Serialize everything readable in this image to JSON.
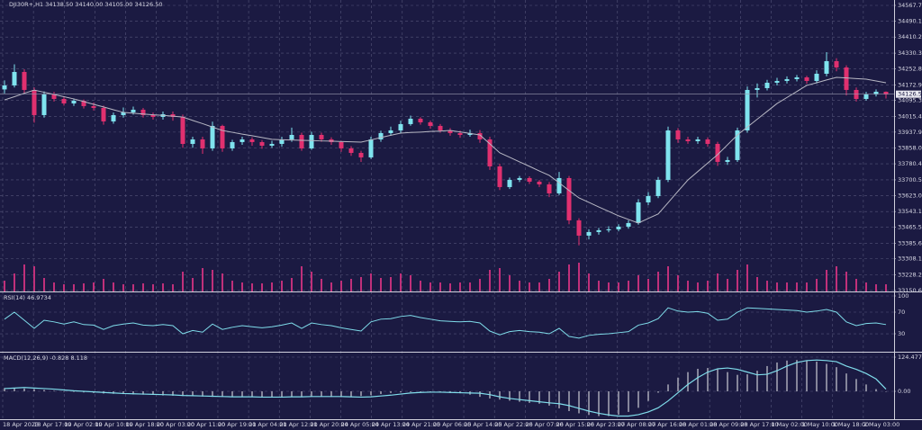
{
  "chart_data": [
    {
      "type": "candlestick",
      "title": "DJI30R+,H1  34138.50 34140.00 34105.00 34126.50",
      "up_color": "#7fe3ee",
      "down_color": "#e0306f",
      "ma_color": "#b8b8c4",
      "volume_color": "#c0307a",
      "grid": true,
      "ylim": [
        33146,
        34594.5
      ],
      "yticks": [
        {
          "value": 34567.7,
          "label": "34567.70"
        },
        34490.15,
        34410.25,
        {
          "value": 34330.3,
          "label": "34330.30"
        },
        {
          "value": 34252.8,
          "label": "34252.80"
        },
        {
          "value": 34172.9,
          "label": "34172.90"
        },
        34095.35,
        34015.45,
        {
          "value": 33937.9,
          "label": "33937.90"
        },
        {
          "value": 33858,
          "label": "33858.00"
        },
        33780.45,
        33700.55,
        {
          "value": 33623,
          "label": "33623.00"
        },
        {
          "value": 33543.1,
          "label": "33543.10"
        },
        33465.55,
        33385.65,
        {
          "value": 33308.1,
          "label": "33308.10"
        },
        {
          "value": 33228.2,
          "label": "33228.20"
        },
        33150.65
      ],
      "last_price": 34126.53,
      "open": [
        34150.0,
        34169.9,
        34236.9,
        34147.5,
        34022.4,
        34125.2,
        34102.8,
        34080.5,
        34093.9,
        34067.1,
        34058.1,
        33991.1,
        34022.4,
        34035.8,
        34049.2,
        34022.4,
        34013.4,
        34026.8,
        34013.4,
        33879.3,
        33901.7,
        33857.0,
        33968.7,
        33857.0,
        33888.3,
        33901.7,
        33888.3,
        33870.4,
        33879.3,
        33901.7,
        33924.0,
        33857.0,
        33924.0,
        33901.7,
        33888.3,
        33857.0,
        33834.6,
        33812.3,
        33901.7,
        33933.0,
        33946.4,
        33977.7,
        34004.5,
        33986.6,
        33968.7,
        33946.4,
        33933.0,
        33924.0,
        33933.0,
        33901.7,
        33767.6,
        33664.8,
        33700.5,
        33709.5,
        33691.6,
        33678.2,
        33633.5,
        33709.5,
        33499.4,
        33423.4,
        33441.3,
        33450.2,
        33454.7,
        33468.1,
        33486.0,
        33588.8,
        33620.1,
        33700.5,
        33946.4,
        33901.7,
        33892.7,
        33901.7,
        33879.3,
        33789.9,
        33798.9,
        33946.4,
        34147.5,
        34156.5,
        34183.3,
        34192.2,
        34201.2,
        34210.1,
        34192.2,
        34228.0,
        34290.6,
        34259.3,
        34147.5,
        34102.8,
        34125.2,
        34138.5
      ],
      "high": [
        34195,
        34275,
        34250,
        34160,
        34140,
        34138,
        34115,
        34105,
        34100,
        34085,
        34070,
        34035,
        34060,
        34065,
        34058,
        34035,
        34040,
        34040,
        34025,
        33915,
        33915,
        33990,
        33975,
        33900,
        33915,
        33912,
        33898,
        33895,
        33915,
        33960,
        33935,
        33940,
        33935,
        33912,
        33895,
        33868,
        33845,
        33915,
        33945,
        33965,
        33995,
        34020,
        34012,
        33995,
        33978,
        33958,
        33945,
        33950,
        33948,
        33915,
        33780,
        33712,
        33720,
        33718,
        33700,
        33690,
        33740,
        33720,
        33510,
        33455,
        33462,
        33470,
        33480,
        33500,
        33605,
        33640,
        33715,
        33965,
        33958,
        33915,
        33915,
        33912,
        33890,
        33815,
        33960,
        34165,
        34180,
        34198,
        34208,
        34215,
        34222,
        34218,
        34245,
        34335,
        34305,
        34270,
        34160,
        34138,
        34150,
        34140
      ],
      "low": [
        34130,
        34160,
        34130,
        33985,
        34010,
        34090,
        34070,
        34068,
        34055,
        34045,
        33975,
        33980,
        34010,
        34025,
        34010,
        34000,
        34000,
        33995,
        33860,
        33860,
        33830,
        33845,
        33840,
        33845,
        33875,
        33870,
        33855,
        33860,
        33865,
        33890,
        33845,
        33850,
        33890,
        33875,
        33840,
        33820,
        33790,
        33805,
        33890,
        33920,
        33935,
        33970,
        33975,
        33955,
        33935,
        33920,
        33910,
        33915,
        33885,
        33750,
        33650,
        33655,
        33690,
        33680,
        33665,
        33615,
        33625,
        33480,
        33375,
        33405,
        33428,
        33440,
        33445,
        33458,
        33478,
        33575,
        33610,
        33690,
        33885,
        33880,
        33880,
        33865,
        33770,
        33775,
        33790,
        33935,
        34110,
        34145,
        34170,
        34180,
        34190,
        34178,
        34180,
        34215,
        34240,
        34120,
        34090,
        34095,
        34115,
        34105
      ],
      "close": [
        34169.9,
        34236.9,
        34147.5,
        34022.4,
        34125.2,
        34102.8,
        34080.5,
        34093.9,
        34067.1,
        34058.1,
        33991.1,
        34022.4,
        34035.8,
        34049.2,
        34022.4,
        34013.4,
        34026.8,
        34013.4,
        33879.3,
        33901.7,
        33857.0,
        33968.7,
        33857.0,
        33888.3,
        33901.7,
        33888.3,
        33870.4,
        33879.3,
        33901.7,
        33924.0,
        33857.0,
        33924.0,
        33901.7,
        33888.3,
        33857.0,
        33834.6,
        33812.3,
        33901.7,
        33933.0,
        33946.4,
        33977.7,
        34004.5,
        33986.6,
        33968.7,
        33946.4,
        33933.0,
        33924.0,
        33933.0,
        33901.7,
        33767.6,
        33664.8,
        33700.5,
        33709.5,
        33691.6,
        33678.2,
        33633.5,
        33709.5,
        33499.4,
        33423.4,
        33441.3,
        33450.2,
        33454.7,
        33468.1,
        33486.0,
        33588.8,
        33620.1,
        33700.5,
        33946.4,
        33901.7,
        33892.7,
        33901.7,
        33879.3,
        33789.9,
        33798.9,
        33946.4,
        34147.5,
        34156.5,
        34183.3,
        34192.2,
        34201.2,
        34210.1,
        34192.2,
        34228.0,
        34290.6,
        34259.3,
        34147.5,
        34102.8,
        34125.2,
        34138.6,
        34126.5
      ],
      "ma": [
        34098,
        34114,
        34131,
        34147,
        34136,
        34125,
        34114,
        34103,
        34090,
        34076,
        34063,
        34049,
        34036,
        34032,
        34028,
        34024,
        34021,
        34017,
        34013,
        33996,
        33980,
        33963,
        33946,
        33937,
        33928,
        33920,
        33911,
        33902,
        33900,
        33899,
        33897,
        33896,
        33894,
        33893,
        33891,
        33890,
        33888,
        33899,
        33911,
        33922,
        33933,
        33936,
        33938,
        33941,
        33943,
        33946,
        33939,
        33931,
        33924,
        33880,
        33835,
        33813,
        33790,
        33768,
        33745,
        33723,
        33686,
        33648,
        33611,
        33589,
        33566,
        33544,
        33522,
        33504,
        33486,
        33509,
        33531,
        33587,
        33644,
        33700,
        33742,
        33784,
        33826,
        33875,
        33924,
        33963,
        34002,
        34041,
        34080,
        34110,
        34140,
        34170,
        34183,
        34197,
        34210,
        34207,
        34204,
        34201,
        34192,
        34183
      ],
      "volume": [
        12,
        20,
        30,
        28,
        15,
        10,
        8,
        8,
        9,
        10,
        14,
        10,
        8,
        8,
        9,
        8,
        9,
        8,
        22,
        15,
        26,
        24,
        20,
        12,
        10,
        9,
        9,
        10,
        12,
        15,
        28,
        22,
        14,
        10,
        12,
        14,
        16,
        20,
        15,
        16,
        20,
        18,
        12,
        10,
        10,
        9,
        10,
        10,
        14,
        24,
        26,
        18,
        12,
        10,
        10,
        14,
        22,
        30,
        32,
        20,
        12,
        10,
        10,
        12,
        18,
        14,
        22,
        28,
        18,
        12,
        10,
        12,
        20,
        14,
        24,
        30,
        16,
        12,
        10,
        10,
        10,
        10,
        14,
        24,
        28,
        22,
        14,
        10,
        8,
        8
      ]
    },
    {
      "type": "line",
      "title": "RSI(14) 46.9734",
      "color": "#7fdcea",
      "grid": true,
      "ylim": [
        -3.3,
        105
      ],
      "yticks": [
        100,
        70,
        30
      ],
      "values": [
        57,
        70,
        55,
        40,
        55,
        52,
        48,
        52,
        47,
        46,
        38,
        45,
        48,
        50,
        46,
        45,
        47,
        45,
        30,
        36,
        33,
        48,
        38,
        42,
        45,
        43,
        41,
        43,
        46,
        50,
        40,
        50,
        47,
        45,
        41,
        38,
        35,
        52,
        57,
        58,
        62,
        64,
        60,
        57,
        54,
        53,
        52,
        53,
        50,
        35,
        28,
        34,
        36,
        34,
        33,
        30,
        40,
        25,
        22,
        27,
        29,
        30,
        32,
        34,
        46,
        50,
        58,
        78,
        72,
        70,
        71,
        68,
        55,
        57,
        70,
        78,
        77,
        76,
        75,
        74,
        73,
        70,
        72,
        75,
        70,
        52,
        45,
        49,
        50,
        47
      ]
    },
    {
      "type": "macd",
      "title": "MACD(12,26,9) -0.828 8.118",
      "hist_color": "#a9a9b8",
      "line_color": "#7fdcea",
      "grid": true,
      "ylim": [
        -101.5,
        137.6
      ],
      "yticks": [
        124.477,
        {
          "value": 0,
          "label": "0.00"
        }
      ],
      "histogram": [
        12,
        12,
        10,
        8,
        5,
        2,
        0,
        -2,
        -4,
        -6,
        -8,
        -9,
        -10,
        -11,
        -12,
        -13,
        -15,
        -16,
        -17,
        -18,
        -19,
        -20,
        -20,
        -20,
        -21,
        -21,
        -21,
        -20,
        -20,
        -19,
        -19,
        -19,
        -19,
        -20,
        -21,
        -20,
        -17,
        -14,
        -10,
        -6,
        -4,
        -3,
        -3,
        -4,
        -5,
        -6,
        -7,
        -12,
        -20,
        -26,
        -30,
        -34,
        -38,
        -42,
        -45,
        -52,
        -62,
        -72,
        -80,
        -86,
        -90,
        -90,
        -85,
        -75,
        -60,
        -35,
        -5,
        25,
        50,
        70,
        82,
        85,
        80,
        70,
        60,
        62,
        75,
        92,
        105,
        112,
        114,
        112,
        108,
        100,
        88,
        65,
        45,
        25,
        8,
        -0.828
      ],
      "signal": [
        10,
        12,
        14,
        12,
        10,
        8,
        5,
        2,
        0,
        -2,
        -4,
        -6,
        -8,
        -9,
        -10,
        -11,
        -12,
        -13,
        -15,
        -16,
        -17,
        -18,
        -19,
        -20,
        -20,
        -20,
        -21,
        -21,
        -21,
        -20,
        -20,
        -19,
        -19,
        -19,
        -19,
        -20,
        -21,
        -20,
        -17,
        -14,
        -10,
        -6,
        -4,
        -3,
        -3,
        -4,
        -5,
        -6,
        -7,
        -12,
        -20,
        -26,
        -30,
        -34,
        -38,
        -42,
        -45,
        -52,
        -62,
        -72,
        -80,
        -86,
        -90,
        -90,
        -85,
        -75,
        -60,
        -35,
        -5,
        25,
        50,
        70,
        82,
        85,
        80,
        70,
        60,
        62,
        75,
        92,
        105,
        112,
        114,
        112,
        108,
        92,
        80,
        65,
        45,
        8.118
      ],
      "x_labels": [
        "18 Apr 2023",
        "18 Apr 17:00",
        "19 Apr 02:00",
        "19 Apr 10:00",
        "19 Apr 18:00",
        "20 Apr 03:00",
        "20 Apr 11:00",
        "20 Apr 19:00",
        "21 Apr 04:00",
        "21 Apr 12:00",
        "21 Apr 20:00",
        "24 Apr 05:00",
        "24 Apr 13:00",
        "24 Apr 21:00",
        "25 Apr 06:00",
        "25 Apr 14:00",
        "25 Apr 22:00",
        "26 Apr 07:00",
        "26 Apr 15:00",
        "26 Apr 23:00",
        "27 Apr 08:00",
        "27 Apr 16:00",
        "28 Apr 01:00",
        "28 Apr 09:00",
        "28 Apr 17:00",
        "1 May 02:00",
        "1 May 10:00",
        "1 May 18:00",
        "2 May 03:00"
      ]
    }
  ]
}
